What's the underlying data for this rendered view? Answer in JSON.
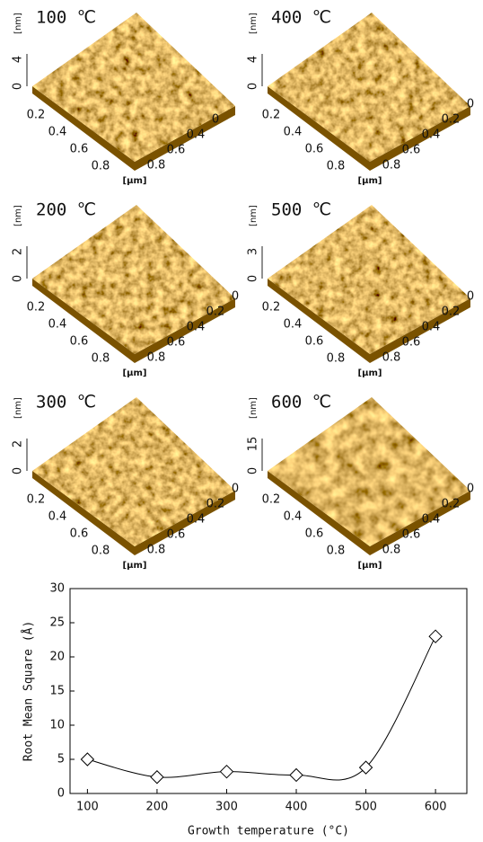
{
  "panels": [
    {
      "label": "100 ℃",
      "z_ticks": [
        "0",
        "4"
      ],
      "z_unit": "[nm]",
      "x_ticks": [
        "0.2",
        "0.4",
        "0.6",
        "0.8"
      ],
      "y_ticks": [
        "0",
        "0.4",
        "0.6",
        "0.8"
      ],
      "xy_unit": "[μm]"
    },
    {
      "label": "400 ℃",
      "z_ticks": [
        "0",
        "4"
      ],
      "z_unit": "[nm]",
      "x_ticks": [
        "0.2",
        "0.4",
        "0.6",
        "0.8"
      ],
      "y_ticks": [
        "0",
        "0.2",
        "0.4",
        "0.6",
        "0.8"
      ],
      "xy_unit": "[μm]"
    },
    {
      "label": "200 ℃",
      "z_ticks": [
        "0",
        "2"
      ],
      "z_unit": "[nm]",
      "x_ticks": [
        "0.2",
        "0.4",
        "0.6",
        "0.8"
      ],
      "y_ticks": [
        "0",
        "0.2",
        "0.4",
        "0.6",
        "0.8"
      ],
      "xy_unit": "[μm]"
    },
    {
      "label": "500 ℃",
      "z_ticks": [
        "0",
        "3"
      ],
      "z_unit": "[nm]",
      "x_ticks": [
        "0.2",
        "0.4",
        "0.6",
        "0.8"
      ],
      "y_ticks": [
        "0",
        "0.2",
        "0.4",
        "0.6",
        "0.8"
      ],
      "xy_unit": "[μm]"
    },
    {
      "label": "300 ℃",
      "z_ticks": [
        "0",
        "2"
      ],
      "z_unit": "[nm]",
      "x_ticks": [
        "0.2",
        "0.4",
        "0.6",
        "0.8"
      ],
      "y_ticks": [
        "0",
        "0.2",
        "0.4",
        "0.6",
        "0.8"
      ],
      "xy_unit": "[μm]"
    },
    {
      "label": "600 ℃",
      "z_ticks": [
        "0",
        "15"
      ],
      "z_unit": "[nm]",
      "x_ticks": [
        "0.2",
        "0.4",
        "0.6",
        "0.8"
      ],
      "y_ticks": [
        "0",
        "0.2",
        "0.4",
        "0.6",
        "0.8"
      ],
      "xy_unit": "[μm]"
    }
  ],
  "chart_data": {
    "type": "line",
    "x_label": "Growth temperature (°C)",
    "y_label": "Root Mean Square (Å)",
    "x": [
      100,
      200,
      300,
      400,
      500,
      600
    ],
    "values": [
      5,
      2.4,
      3.2,
      2.7,
      3.8,
      23
    ],
    "color": "#000000",
    "marker": "diamond",
    "xlim": [
      75,
      645
    ],
    "xticks": [
      100,
      200,
      300,
      400,
      500,
      600
    ],
    "ylim": [
      0,
      30
    ],
    "yticks": [
      0,
      5,
      10,
      15,
      20,
      25,
      30
    ],
    "grid": false
  }
}
